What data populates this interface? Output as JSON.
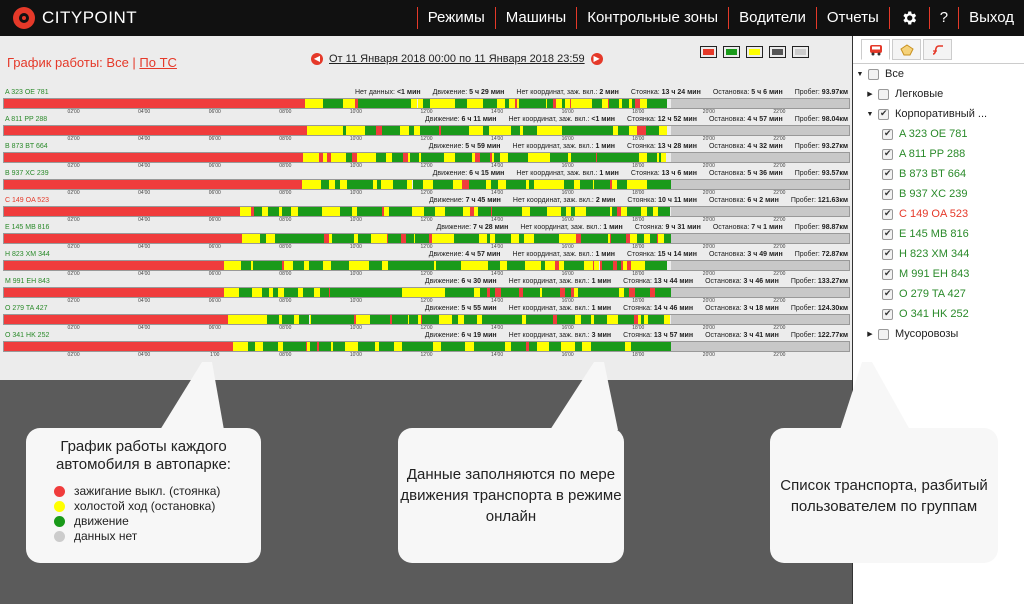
{
  "app": {
    "logo_text": "CITYPOINT",
    "brand_color": "#e53929",
    "nav": [
      {
        "label": "Режимы"
      },
      {
        "label": "Машины"
      },
      {
        "label": "Контрольные зоны"
      },
      {
        "label": "Водители"
      },
      {
        "label": "Отчеты"
      },
      {
        "label": "",
        "icon": "gear-icon"
      },
      {
        "label": "?"
      },
      {
        "label": "Выход"
      }
    ]
  },
  "schedule": {
    "title_prefix": "График работы: ",
    "title_all": "Все",
    "title_sep": " | ",
    "title_by_vehicle": "По ТС",
    "date_range": "От 11 Января 2018 00:00 по 11 Января 2018 23:59",
    "filters": [
      {
        "name": "stopped",
        "color": "#e53929"
      },
      {
        "name": "moving",
        "color": "#1a9a1a"
      },
      {
        "name": "idle",
        "color": "#ffff00"
      },
      {
        "name": "no-data-dark",
        "color": "#555555"
      },
      {
        "name": "no-data",
        "color": "#cccccc"
      }
    ],
    "tick_labels": [
      "02'00",
      "04'00",
      "06'00",
      "08'00",
      "10'00",
      "12'00",
      "14'00",
      "16'00",
      "18'00",
      "20'00",
      "22'00"
    ],
    "stat_labels": {
      "nodata": "Нет данных:",
      "move": "Движение:",
      "nocoord": "Нет координат, заж. вкл.:",
      "parking": "Стоянка:",
      "stop": "Остановка:",
      "mileage": "Пробег:"
    },
    "vehicles": [
      {
        "plate": "A 323 OE 781",
        "red": false,
        "nodata": "<1 мин",
        "move": "5 ч 29 мин",
        "nocoord": "2 мин",
        "parking": "13 ч 24 мин",
        "stop": "5 ч 6 мин",
        "mileage": "93.97км",
        "seed": 11,
        "start": 8.55,
        "end": 18.95,
        "tick_start_label": null
      },
      {
        "plate": "A 811 PP 288",
        "red": false,
        "nodata": null,
        "move": "6 ч 11 мин",
        "nocoord": "<1 мин",
        "parking": "12 ч 52 мин",
        "stop": "4 ч 57 мин",
        "mileage": "98.04км",
        "seed": 23,
        "start": 8.6,
        "end": 18.95,
        "tick_start_label": null
      },
      {
        "plate": "B 873 BT 664",
        "red": false,
        "nodata": null,
        "move": "5 ч 59 мин",
        "nocoord": "1 мин",
        "parking": "13 ч 28 мин",
        "stop": "4 ч 32 мин",
        "mileage": "93.27км",
        "seed": 37,
        "start": 8.5,
        "end": 18.95,
        "tick_start_label": null
      },
      {
        "plate": "B 937 XC 239",
        "red": false,
        "nodata": null,
        "move": "6 ч 15 мин",
        "nocoord": "1 мин",
        "parking": "13 ч 6 мин",
        "stop": "5 ч 36 мин",
        "mileage": "93.57км",
        "seed": 41,
        "start": 8.45,
        "end": 18.95,
        "tick_start_label": null
      },
      {
        "plate": "C 149 OA 523",
        "red": true,
        "nodata": null,
        "move": "7 ч 45 мин",
        "nocoord": "2 мин",
        "parking": "10 ч 11 мин",
        "stop": "6 ч 2 мин",
        "mileage": "121.63км",
        "seed": 53,
        "start": 6.7,
        "end": 18.95,
        "tick_start_label": null
      },
      {
        "plate": "E 145 MB 816",
        "red": false,
        "nodata": null,
        "move": "7 ч 28 мин",
        "nocoord": "1 мин",
        "parking": "9 ч 31 мин",
        "stop": "7 ч 1 мин",
        "mileage": "98.87км",
        "seed": 67,
        "start": 6.75,
        "end": 18.95,
        "tick_start_label": null
      },
      {
        "plate": "H 823 XM 344",
        "red": false,
        "nodata": null,
        "move": "4 ч 57 мин",
        "nocoord": "1 мин",
        "parking": "15 ч 14 мин",
        "stop": "3 ч 49 мин",
        "mileage": "72.87км",
        "seed": 79,
        "start": 6.25,
        "end": 18.95,
        "tick_start_label": null
      },
      {
        "plate": "M 991 EH 843",
        "red": false,
        "nodata": null,
        "move": "6 ч 30 мин",
        "nocoord": "1 мин",
        "parking": "13 ч 44 мин",
        "stop": "3 ч 46 мин",
        "mileage": "133.27км",
        "seed": 83,
        "start": 6.25,
        "end": 18.95,
        "tick_start_label": null
      },
      {
        "plate": "O 279 TA 427",
        "red": false,
        "nodata": null,
        "move": "5 ч 55 мин",
        "nocoord": "1 мин",
        "parking": "14 ч 46 мин",
        "stop": "3 ч 18 мин",
        "mileage": "124.30км",
        "seed": 97,
        "start": 6.35,
        "end": 18.95,
        "tick_start_label": null
      },
      {
        "plate": "O 341 HK 252",
        "red": false,
        "nodata": null,
        "move": "6 ч 19 мин",
        "nocoord": "3 мин",
        "parking": "13 ч 57 мин",
        "stop": "3 ч 41 мин",
        "mileage": "122.77км",
        "seed": 101,
        "start": 6.5,
        "end": 18.95,
        "tick_start_label": "1'00"
      }
    ]
  },
  "sidebar": {
    "tabs": [
      {
        "icon": "truck-icon"
      },
      {
        "icon": "geofence-icon"
      },
      {
        "icon": "route-icon"
      }
    ],
    "tree": [
      {
        "label": "Все",
        "level": 0,
        "toggle": "▼",
        "checked": false,
        "color": ""
      },
      {
        "label": "Легковые",
        "level": 1,
        "toggle": "▶",
        "checked": false,
        "color": ""
      },
      {
        "label": "Корпоративный ...",
        "level": 1,
        "toggle": "▼",
        "checked": true,
        "color": ""
      },
      {
        "label": "A 323 OE 781",
        "level": 2,
        "toggle": "",
        "checked": true,
        "color": "green"
      },
      {
        "label": "A 811 PP 288",
        "level": 2,
        "toggle": "",
        "checked": true,
        "color": "green"
      },
      {
        "label": "B 873 BT 664",
        "level": 2,
        "toggle": "",
        "checked": true,
        "color": "green"
      },
      {
        "label": "B 937 XC 239",
        "level": 2,
        "toggle": "",
        "checked": true,
        "color": "green"
      },
      {
        "label": "C 149 OA 523",
        "level": 2,
        "toggle": "",
        "checked": true,
        "color": "red"
      },
      {
        "label": "E 145 MB 816",
        "level": 2,
        "toggle": "",
        "checked": true,
        "color": "green"
      },
      {
        "label": "H 823 XM 344",
        "level": 2,
        "toggle": "",
        "checked": true,
        "color": "green"
      },
      {
        "label": "M 991 EH 843",
        "level": 2,
        "toggle": "",
        "checked": true,
        "color": "green"
      },
      {
        "label": "O 279 TA 427",
        "level": 2,
        "toggle": "",
        "checked": true,
        "color": "green"
      },
      {
        "label": "O 341 HK 252",
        "level": 2,
        "toggle": "",
        "checked": true,
        "color": "green"
      },
      {
        "label": "Мусоровозы",
        "level": 1,
        "toggle": "▶",
        "checked": false,
        "color": ""
      }
    ]
  },
  "callouts": {
    "legend_title": "График работы каждого автомобиля в автопарке:",
    "legend": [
      {
        "label": "зажигание выкл. (стоянка)",
        "color": "#f03c3c"
      },
      {
        "label": "холостой ход (остановка)",
        "color": "#ffff00"
      },
      {
        "label": "движение",
        "color": "#1a9a1a"
      },
      {
        "label": "данных нет",
        "color": "#cccccc"
      }
    ],
    "online_text": "Данные заполняются по мере движения транспорта в режиме онлайн",
    "groups_text": "Список транспорта, разбитый пользователем по группам"
  }
}
